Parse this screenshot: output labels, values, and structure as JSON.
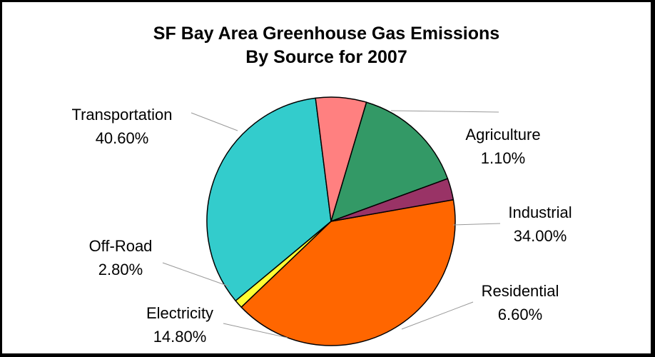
{
  "chart_data": {
    "type": "pie",
    "title": [
      "SF Bay Area Greenhouse Gas Emissions",
      "By Source for 2007"
    ],
    "slices": [
      {
        "name": "Transportation",
        "value": 40.6,
        "label": "40.60%",
        "color": "#ff6600"
      },
      {
        "name": "Agriculture",
        "value": 1.1,
        "label": "1.10%",
        "color": "#ffff33"
      },
      {
        "name": "Industrial",
        "value": 34.0,
        "label": "34.00%",
        "color": "#33cccc"
      },
      {
        "name": "Residential",
        "value": 6.6,
        "label": "6.60%",
        "color": "#ff8080"
      },
      {
        "name": "Electricity",
        "value": 14.8,
        "label": "14.80%",
        "color": "#339966"
      },
      {
        "name": "Off-Road",
        "value": 2.8,
        "label": "2.80%",
        "color": "#993366"
      }
    ],
    "legend": "none"
  }
}
